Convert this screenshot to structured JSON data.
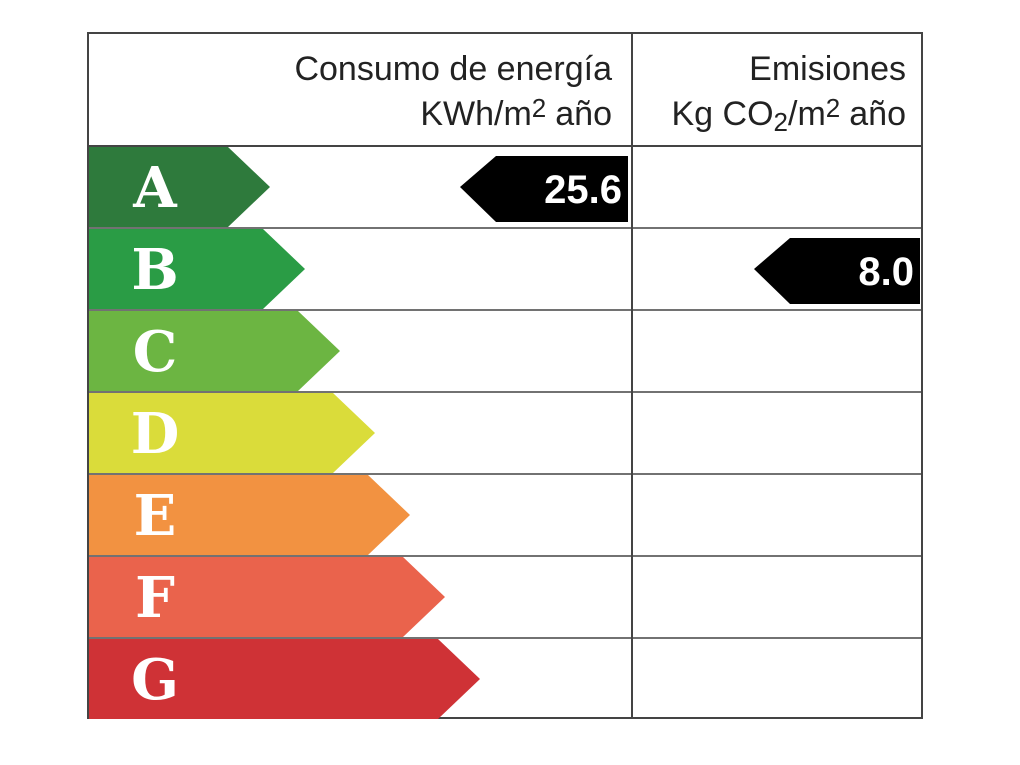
{
  "header": {
    "energy_title": "Consumo de energía",
    "energy_unit": [
      "KWh/m",
      "2",
      "año"
    ],
    "emissions_title": "Emisiones",
    "emissions_unit": [
      "Kg CO",
      "2",
      "/m",
      "2",
      "año"
    ]
  },
  "rows": [
    {
      "letter": "A",
      "color": "#2e7a3c",
      "energy": "25.6",
      "emissions": null
    },
    {
      "letter": "B",
      "color": "#2a9c45",
      "energy": null,
      "emissions": "8.0"
    },
    {
      "letter": "C",
      "color": "#6cb542",
      "energy": null,
      "emissions": null
    },
    {
      "letter": "D",
      "color": "#dadc3a",
      "energy": null,
      "emissions": null
    },
    {
      "letter": "E",
      "color": "#f29241",
      "energy": null,
      "emissions": null
    },
    {
      "letter": "F",
      "color": "#ea634c",
      "energy": null,
      "emissions": null
    },
    {
      "letter": "G",
      "color": "#cf3236",
      "energy": null,
      "emissions": null
    }
  ]
}
